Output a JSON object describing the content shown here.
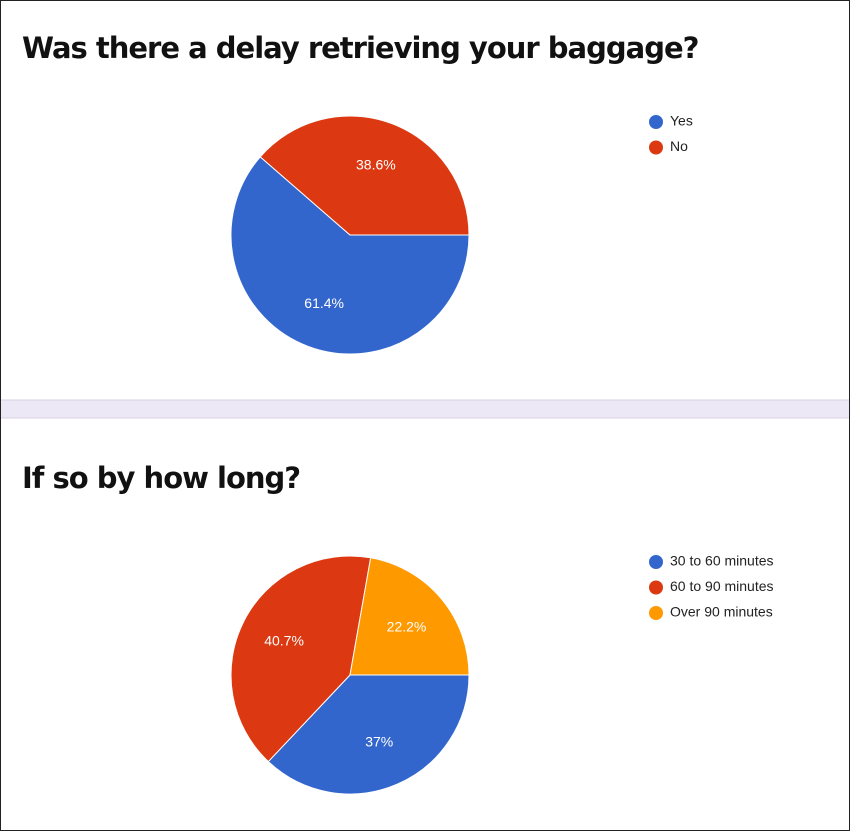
{
  "chart_data": [
    {
      "type": "pie",
      "title": "Was there a delay retrieving your baggage?",
      "categories": [
        "Yes",
        "No"
      ],
      "values": [
        61.4,
        38.6
      ],
      "value_labels": [
        "61.4%",
        "38.6%"
      ],
      "colors": [
        "#3366cc",
        "#dc3912"
      ],
      "legend": "right"
    },
    {
      "type": "pie",
      "title": "If so by how long?",
      "categories": [
        "30 to 60 minutes",
        "60 to 90 minutes",
        "Over 90 minutes"
      ],
      "values": [
        37,
        40.7,
        22.2
      ],
      "value_labels": [
        "37%",
        "40.7%",
        "22.2%"
      ],
      "colors": [
        "#3366cc",
        "#dc3912",
        "#ff9900"
      ],
      "legend": "right"
    }
  ]
}
